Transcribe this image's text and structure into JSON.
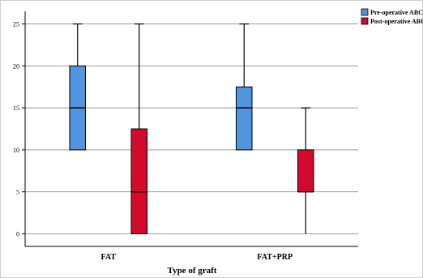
{
  "chart_data": {
    "type": "boxplot",
    "xlabel": "Type of graft",
    "ylabel": "",
    "ylim": [
      -1.5,
      26.5
    ],
    "yticks": [
      0,
      5,
      10,
      15,
      20,
      25
    ],
    "grid": true,
    "legend_position": "top-right",
    "categories": [
      "FAT",
      "FAT+PRP"
    ],
    "series": [
      {
        "name": "Pre-operative ABC",
        "color": "#5194df",
        "boxes": [
          {
            "min": 10,
            "q1": 10,
            "median": 15,
            "q3": 20,
            "max": 25
          },
          {
            "min": 10,
            "q1": 10,
            "median": 15,
            "q3": 17.5,
            "max": 25
          }
        ]
      },
      {
        "name": "Post-operative ABC",
        "color": "#d40a2d",
        "boxes": [
          {
            "min": 0,
            "q1": 0,
            "median": 5,
            "q3": 12.5,
            "max": 25
          },
          {
            "min": 0,
            "q1": 5,
            "median": 5,
            "q3": 10,
            "max": 15
          }
        ]
      }
    ]
  }
}
